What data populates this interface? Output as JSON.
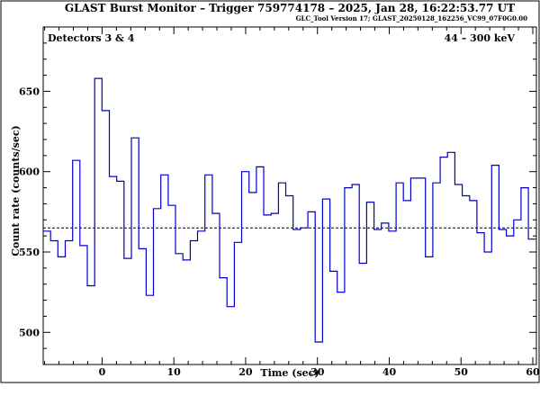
{
  "header": {
    "title": "GLAST Burst Monitor  –  Trigger 759774178  –  2025, Jan 28, 16:22:53.77 UT",
    "version": "GLC_Tool Version 17; GLAST_20250128_162256_VC99_07F0G0.00"
  },
  "panel": {
    "detectors_label": "Detectors 3 & 4",
    "energy_label": "44 – 300 keV"
  },
  "chart_data": {
    "type": "line",
    "style": "step",
    "xlabel": "Time (sec)",
    "ylabel": "Count rate (counts/sec)",
    "xlim": [
      -8.2,
      60.5
    ],
    "ylim": [
      480,
      690
    ],
    "xticks": [
      0,
      10,
      20,
      30,
      40,
      50,
      60
    ],
    "yticks": [
      500,
      550,
      600,
      650
    ],
    "bin_width": 1.024,
    "bin_start": -8.2,
    "background_level": 565,
    "series": [
      {
        "color": "#0000cc",
        "values": [
          563,
          557,
          547,
          557,
          607,
          554,
          529,
          658,
          638,
          597,
          594,
          546,
          621,
          552,
          523,
          577,
          598,
          579,
          549,
          545,
          557,
          563,
          598,
          574,
          534,
          516,
          556,
          600,
          587,
          603,
          573,
          574,
          593,
          585,
          564,
          565,
          575,
          494,
          583,
          538,
          525,
          590,
          592,
          543,
          581,
          564,
          568,
          563,
          593,
          582,
          596,
          596,
          547,
          593,
          609,
          612,
          592,
          585,
          582,
          562,
          550,
          604,
          564,
          560,
          570,
          590,
          558
        ]
      }
    ]
  }
}
